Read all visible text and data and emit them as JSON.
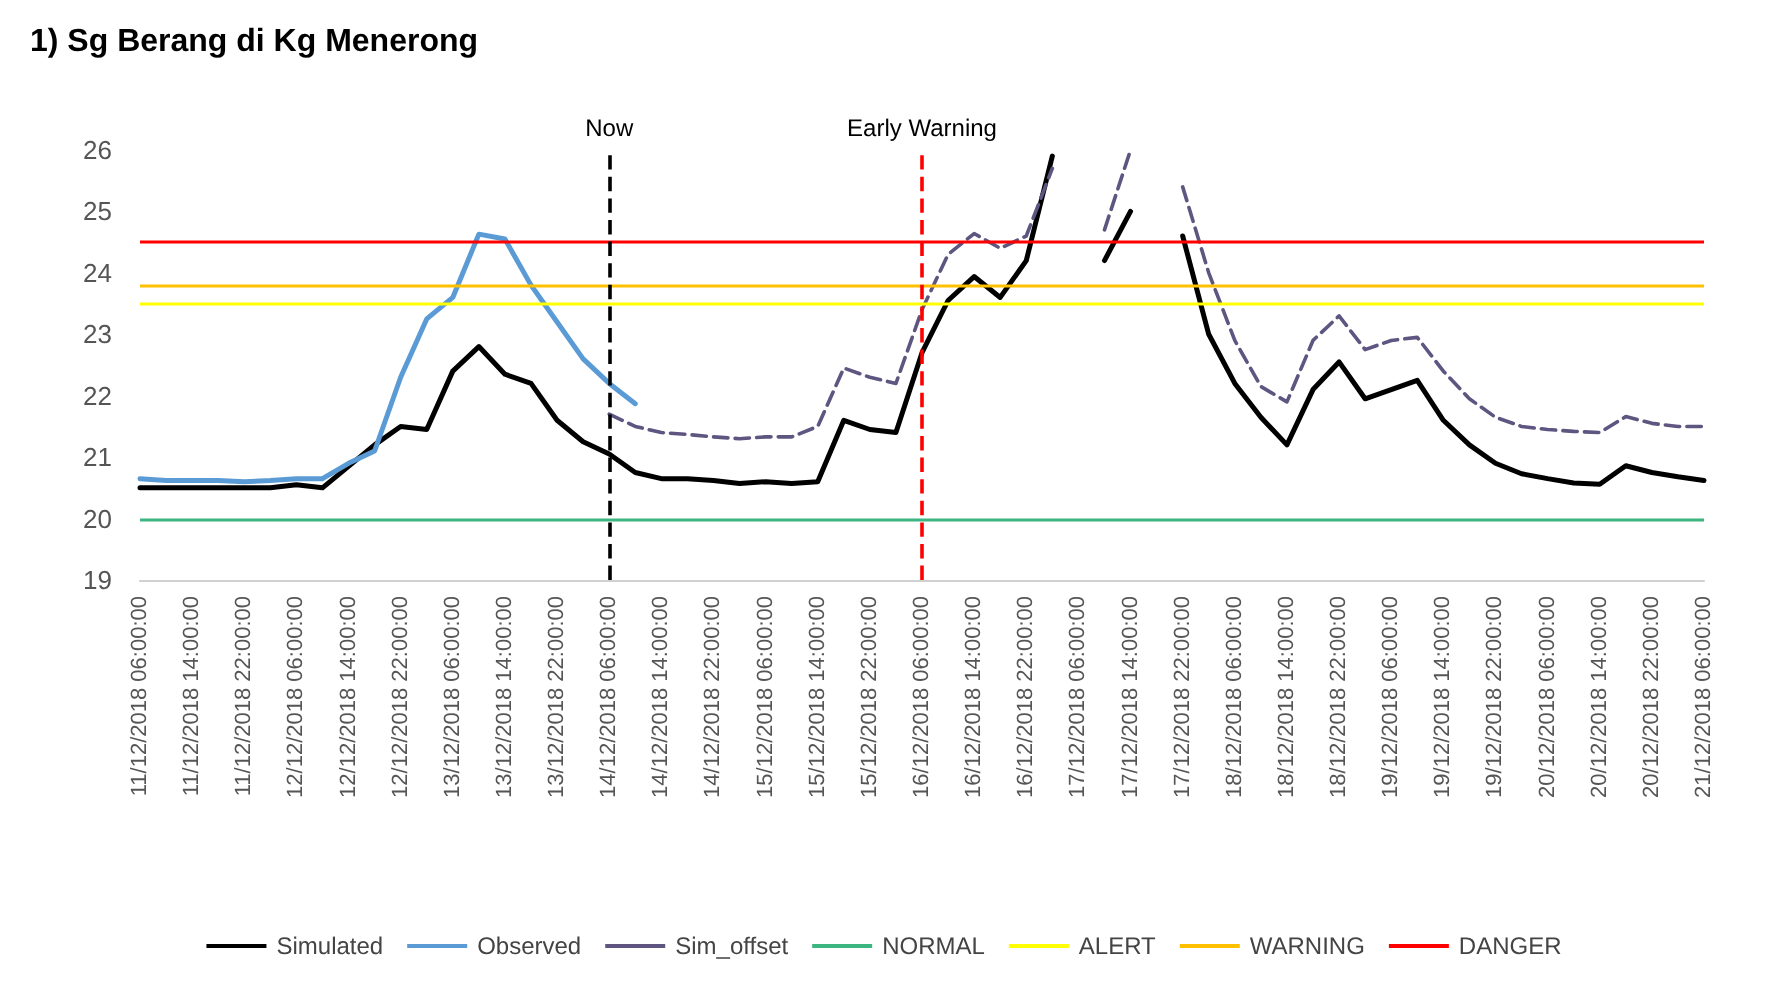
{
  "chart_data": {
    "type": "line",
    "title": "1) Sg Berang di Kg Menerong",
    "categories": [
      "11/12/2018 06:00:00",
      null,
      "11/12/2018 14:00:00",
      null,
      "11/12/2018 22:00:00",
      null,
      "12/12/2018 06:00:00",
      null,
      "12/12/2018 14:00:00",
      null,
      "12/12/2018 22:00:00",
      null,
      "13/12/2018 06:00:00",
      null,
      "13/12/2018 14:00:00",
      null,
      "13/12/2018 22:00:00",
      null,
      "14/12/2018 06:00:00",
      null,
      "14/12/2018 14:00:00",
      null,
      "14/12/2018 22:00:00",
      null,
      "15/12/2018 06:00:00",
      null,
      "15/12/2018 14:00:00",
      null,
      "15/12/2018 22:00:00",
      null,
      "16/12/2018 06:00:00",
      null,
      "16/12/2018 14:00:00",
      null,
      "16/12/2018 22:00:00",
      null,
      "17/12/2018 06:00:00",
      null,
      "17/12/2018 14:00:00",
      null,
      "17/12/2018 22:00:00",
      null,
      "18/12/2018 06:00:00",
      null,
      "18/12/2018 14:00:00",
      null,
      "18/12/2018 22:00:00",
      null,
      "19/12/2018 06:00:00",
      null,
      "19/12/2018 14:00:00",
      null,
      "19/12/2018 22:00:00",
      null,
      "20/12/2018 06:00:00",
      null,
      "20/12/2018 14:00:00",
      null,
      "20/12/2018 22:00:00",
      null,
      "21/12/2018 06:00:00"
    ],
    "series": [
      {
        "name": "Simulated",
        "color": "#000000",
        "values": [
          20.5,
          20.5,
          20.5,
          20.5,
          20.5,
          20.5,
          20.55,
          20.5,
          20.85,
          21.2,
          21.5,
          21.45,
          22.4,
          22.8,
          22.35,
          22.2,
          21.6,
          21.25,
          21.05,
          20.75,
          20.65,
          20.65,
          20.62,
          20.57,
          20.6,
          20.57,
          20.6,
          21.6,
          21.45,
          21.4,
          22.7,
          23.55,
          23.94,
          23.6,
          24.2,
          25.9,
          null,
          24.2,
          25.0,
          null,
          24.6,
          23.0,
          22.2,
          21.65,
          21.2,
          22.1,
          22.55,
          21.95,
          22.1,
          22.25,
          21.6,
          21.2,
          20.9,
          20.73,
          20.65,
          20.58,
          20.56,
          20.86,
          20.75,
          20.68,
          20.62
        ]
      },
      {
        "name": "Observed",
        "color": "#5b9bd5",
        "values": [
          20.65,
          20.62,
          20.62,
          20.62,
          20.6,
          20.62,
          20.65,
          20.65,
          20.9,
          21.1,
          22.3,
          23.25,
          23.6,
          24.63,
          24.55,
          23.8,
          23.2,
          22.6,
          22.2,
          21.87,
          null,
          null,
          null,
          null,
          null,
          null,
          null,
          null,
          null,
          null,
          null,
          null,
          null,
          null,
          null,
          null,
          null,
          null,
          null,
          null,
          null,
          null,
          null,
          null,
          null,
          null,
          null,
          null,
          null,
          null,
          null,
          null,
          null,
          null,
          null,
          null,
          null,
          null,
          null,
          null,
          null
        ]
      },
      {
        "name": "Sim_offset",
        "color": "#5e5580",
        "line_style": "dashed",
        "values": [
          null,
          null,
          null,
          null,
          null,
          null,
          null,
          null,
          null,
          null,
          null,
          null,
          null,
          null,
          null,
          null,
          null,
          null,
          21.7,
          21.5,
          21.4,
          21.37,
          21.33,
          21.3,
          21.33,
          21.33,
          21.5,
          22.45,
          22.3,
          22.2,
          23.4,
          24.3,
          24.64,
          24.4,
          24.6,
          25.7,
          null,
          24.7,
          26,
          null,
          25.4,
          24.0,
          22.9,
          22.15,
          21.9,
          22.9,
          23.3,
          22.75,
          22.9,
          22.95,
          22.4,
          21.95,
          21.65,
          21.5,
          21.45,
          21.42,
          21.4,
          21.66,
          21.55,
          21.5,
          21.5
        ]
      }
    ],
    "ref_lines": [
      {
        "axis": "y",
        "value": 20,
        "label": "NORMAL",
        "color": "#3cb680"
      },
      {
        "axis": "y",
        "value": 23.5,
        "label": "ALERT",
        "color": "#ffff00"
      },
      {
        "axis": "y",
        "value": 23.8,
        "label": "WARNING",
        "color": "#ffc000"
      },
      {
        "axis": "y",
        "value": 24.5,
        "label": "DANGER",
        "color": "#ff0000"
      },
      {
        "axis": "x",
        "value": "14/12/2018 06:00:00",
        "label": "Now",
        "color": "#000000",
        "line_style": "dashed"
      },
      {
        "axis": "x",
        "value": "16/12/2018 06:00:00",
        "label": "Early Warning",
        "color": "#ff0000",
        "line_style": "dashed"
      }
    ],
    "ylim": [
      19,
      26
    ],
    "yticks": [
      19,
      20,
      21,
      22,
      23,
      24,
      25,
      26
    ],
    "grid": false,
    "legend": "bottom",
    "marker": "none",
    "line_style": "solid"
  }
}
